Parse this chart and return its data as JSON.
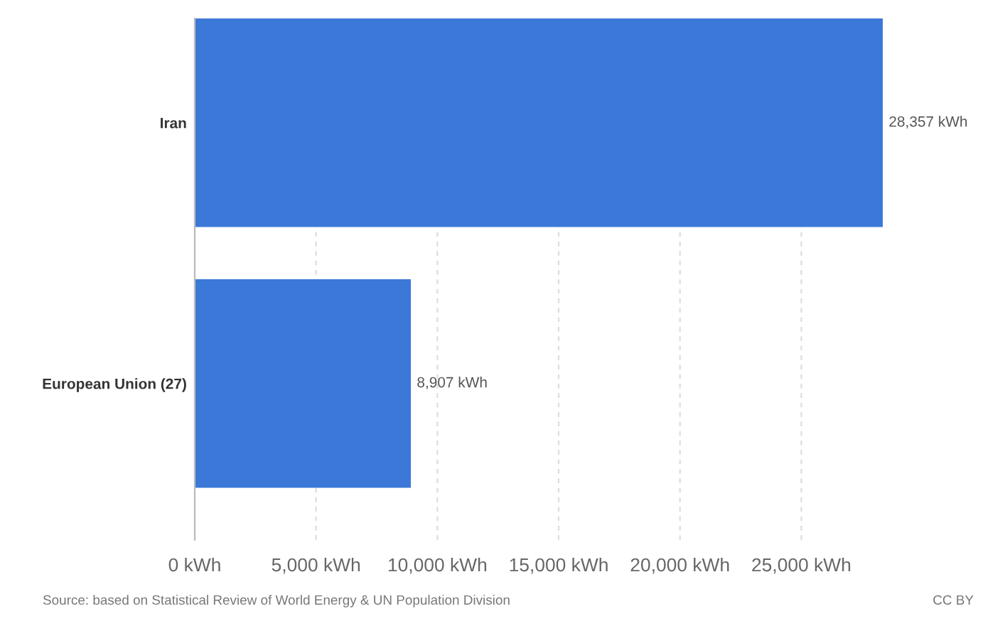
{
  "chart_data": {
    "type": "bar",
    "orientation": "horizontal",
    "categories": [
      "Iran",
      "European Union (27)"
    ],
    "values": [
      28357,
      8907
    ],
    "color": "#3b78d8",
    "value_labels": [
      "28,357 kWh",
      "8,907 kWh"
    ],
    "xlim": [
      0,
      28357
    ],
    "xticks": [
      {
        "value": 0,
        "label": "0 kWh"
      },
      {
        "value": 5000,
        "label": "5,000 kWh"
      },
      {
        "value": 10000,
        "label": "10,000 kWh"
      },
      {
        "value": 15000,
        "label": "15,000 kWh"
      },
      {
        "value": 20000,
        "label": "20,000 kWh"
      },
      {
        "value": 25000,
        "label": "25,000 kWh"
      }
    ],
    "grid": "x",
    "annotations": [
      "Source: based on Statistical Review of World Energy & UN Population Division",
      "CC BY"
    ]
  }
}
